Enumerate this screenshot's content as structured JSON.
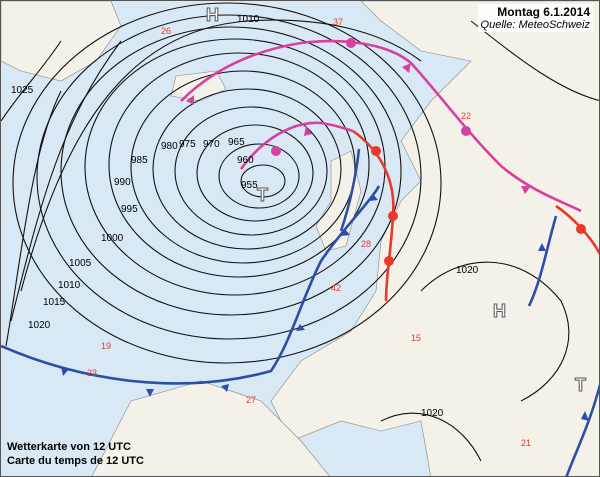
{
  "header": {
    "date": "Montag 6.1.2014",
    "source": "Quelle: MeteoSchweiz"
  },
  "caption": {
    "line1": "Wetterkarte von 12 UTC",
    "line2": "Carte du temps de 12 UTC"
  },
  "colors": {
    "sea": "#d9e8f5",
    "land": "#f4f1e8",
    "cold_front": "#2b4fa8",
    "warm_front": "#e8392a",
    "occlusion": "#d6409f"
  },
  "isobar_labels": [
    "1025",
    "985",
    "980",
    "975",
    "970",
    "965",
    "960",
    "955",
    "990",
    "995",
    "1000",
    "1005",
    "1010",
    "1015",
    "1020",
    "1010",
    "1020",
    "1020"
  ],
  "pressure_systems": [
    {
      "type": "high",
      "label": "H"
    },
    {
      "type": "low",
      "label": "T"
    },
    {
      "type": "high",
      "label": "H"
    },
    {
      "type": "low",
      "label": "T"
    }
  ],
  "station_temps": [
    "37",
    "22",
    "28",
    "42",
    "26",
    "19",
    "23",
    "27",
    "15",
    "21"
  ]
}
